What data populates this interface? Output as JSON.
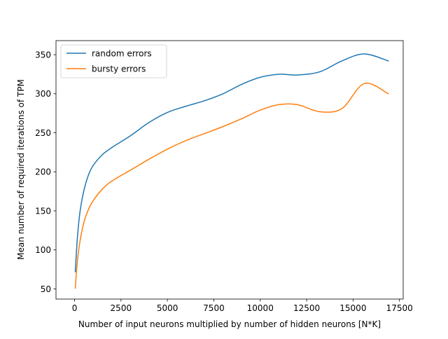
{
  "chart_data": {
    "type": "line",
    "title": "",
    "xlabel": "Number of input neurons multiplied by number of hidden neurons [N*K]",
    "ylabel": "Mean number of required iterations of TPM",
    "xlim": [
      -1000,
      17700
    ],
    "ylim": [
      37,
      368
    ],
    "xticks": [
      0,
      2500,
      5000,
      7500,
      10000,
      12500,
      15000,
      17500
    ],
    "yticks": [
      50,
      100,
      150,
      200,
      250,
      300,
      350
    ],
    "grid": false,
    "legend_position": "upper left",
    "series": [
      {
        "name": "random errors",
        "color": "#1f77b4",
        "x": [
          40,
          150,
          300,
          500,
          750,
          1000,
          1500,
          2000,
          3000,
          4000,
          5000,
          6000,
          7000,
          8000,
          9000,
          10000,
          11000,
          12000,
          13200,
          14400,
          15600,
          16900
        ],
        "y": [
          72,
          115,
          150,
          176,
          196,
          208,
          222,
          231,
          246,
          263,
          276,
          284,
          291,
          300,
          312,
          321,
          325,
          324,
          328,
          342,
          351,
          342
        ]
      },
      {
        "name": "bursty errors",
        "color": "#ff7f0e",
        "x": [
          40,
          150,
          300,
          500,
          750,
          1000,
          1500,
          2000,
          3000,
          4000,
          5000,
          6000,
          7000,
          8000,
          9000,
          10000,
          11000,
          12000,
          13200,
          14400,
          15600,
          16900
        ],
        "y": [
          51,
          85,
          112,
          135,
          152,
          163,
          178,
          188,
          202,
          216,
          229,
          240,
          249,
          258,
          268,
          279,
          286,
          286,
          277,
          281,
          313,
          300
        ]
      }
    ]
  }
}
